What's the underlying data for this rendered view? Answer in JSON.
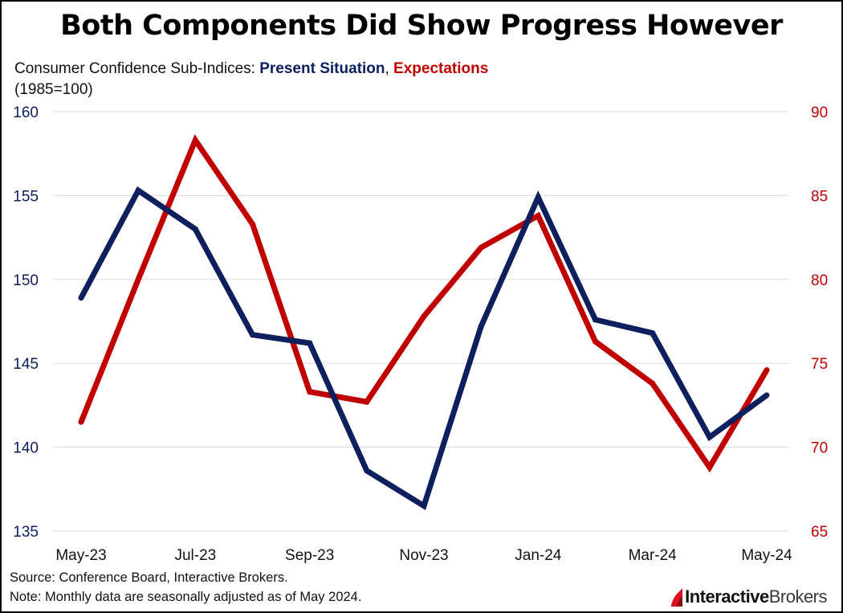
{
  "title": "Both Components Did Show Progress However",
  "subtitle": {
    "prefix": "Consumer Confidence Sub-Indices: ",
    "series1": "Present Situation",
    "sep": ", ",
    "series2": "Expectations",
    "base": "(1985=100)"
  },
  "colors": {
    "present": "#0d1f5c",
    "expectations": "#c00000",
    "grid": "#d9d9d9"
  },
  "chart_data": {
    "type": "line",
    "categories": [
      "May-23",
      "Jun-23",
      "Jul-23",
      "Aug-23",
      "Sep-23",
      "Oct-23",
      "Nov-23",
      "Dec-23",
      "Jan-24",
      "Feb-24",
      "Mar-24",
      "Apr-24",
      "May-24"
    ],
    "x_tick_labels": [
      "May-23",
      "Jul-23",
      "Sep-23",
      "Nov-23",
      "Jan-24",
      "Mar-24",
      "May-24"
    ],
    "series": [
      {
        "name": "Present Situation",
        "axis": "left",
        "values": [
          148.9,
          155.3,
          153.0,
          146.7,
          146.2,
          138.6,
          136.5,
          147.2,
          154.9,
          147.6,
          146.8,
          140.6,
          143.1
        ]
      },
      {
        "name": "Expectations",
        "axis": "right",
        "values": [
          71.5,
          80.0,
          88.3,
          83.3,
          73.3,
          72.7,
          77.8,
          81.9,
          83.8,
          76.3,
          73.8,
          68.8,
          74.6
        ]
      }
    ],
    "y_left": {
      "min": 135,
      "max": 160,
      "ticks": [
        "135",
        "140",
        "145",
        "150",
        "155",
        "160"
      ]
    },
    "y_right": {
      "min": 65,
      "max": 90,
      "ticks": [
        "65",
        "70",
        "75",
        "80",
        "85",
        "90"
      ]
    },
    "grid": true
  },
  "footer": {
    "source": "Source: Conference Board, Interactive Brokers.",
    "note": "Note: Monthly data are seasonally adjusted as of May 2024."
  },
  "logo": {
    "part1": "Interactive",
    "part2": "Brokers",
    "icon": "ib-flame-logo-icon"
  }
}
